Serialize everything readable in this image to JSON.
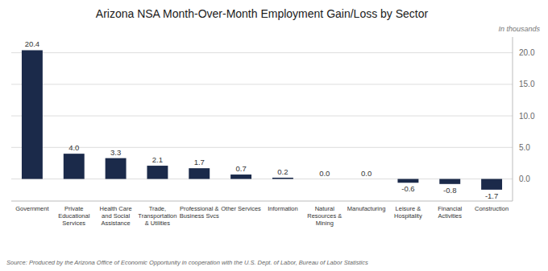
{
  "chart_data": {
    "type": "bar",
    "title": "Arizona NSA Month-Over-Month Employment Gain/Loss by Sector",
    "subtitle": "In thousands",
    "source": "Source: Produced by the Arizona Office of Economic Opportunity in cooperation with the U.S. Dept. of Labor, Bureau of Labor Statistics",
    "categories": [
      "Government",
      "Private\nEducational\nServices",
      "Health Care\nand Social\nAssistance",
      "Trade,\nTransportation\n& Utilities",
      "Professional &\nBusiness Svcs",
      "Other Services",
      "Information",
      "Natural\nResources &\nMining",
      "Manufacturing",
      "Leisure &\nHospitality",
      "Financial\nActivities",
      "Construction"
    ],
    "values": [
      20.4,
      4.0,
      3.3,
      2.1,
      1.7,
      0.7,
      0.2,
      0.0,
      0.0,
      -0.6,
      -0.8,
      -1.7
    ],
    "value_labels": [
      "20.4",
      "4.0",
      "3.3",
      "2.1",
      "1.7",
      "0.7",
      "0.2",
      "0.0",
      "0.0",
      "-0.6",
      "-0.8",
      "-1.7"
    ],
    "data_labels": true,
    "color": "#1b2a4a",
    "ylim": [
      -3.5,
      22.5
    ],
    "yticks": [
      {
        "value": 0.0,
        "label": "0.0"
      },
      {
        "value": 5.0,
        "label": "5.0"
      },
      {
        "value": 10.0,
        "label": "10.0"
      },
      {
        "value": 15.0,
        "label": "15.0"
      },
      {
        "value": 20.0,
        "label": "20.0"
      }
    ],
    "grid": true
  }
}
